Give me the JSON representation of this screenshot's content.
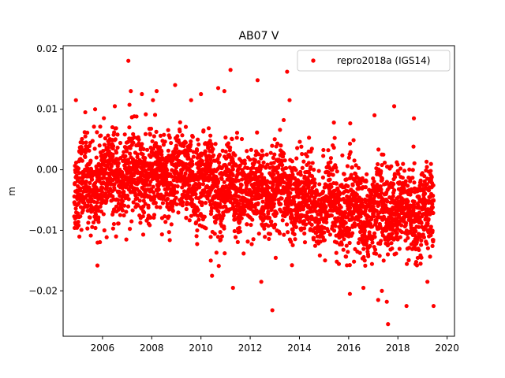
{
  "chart_data": {
    "type": "scatter",
    "title": "AB07 V",
    "xlabel": "",
    "ylabel": "m",
    "xlim": [
      2004.4,
      2020.3
    ],
    "ylim": [
      -0.0275,
      0.0205
    ],
    "xticks": [
      2006,
      2008,
      2010,
      2012,
      2014,
      2016,
      2018,
      2020
    ],
    "xtick_labels": [
      "2006",
      "2008",
      "2010",
      "2012",
      "2014",
      "2016",
      "2018",
      "2020"
    ],
    "yticks": [
      0.02,
      0.01,
      0.0,
      -0.01,
      -0.02
    ],
    "ytick_labels": [
      "0.02",
      "0.01",
      "0.00",
      "−0.01",
      "−0.02"
    ],
    "grid": false,
    "legend_position": "top-right",
    "series": [
      {
        "name": "repro2018a (IGS14)",
        "color": "#ff0000",
        "marker": "circle",
        "x_range": [
          2004.85,
          2019.45
        ],
        "trend_points": [
          [
            2004.85,
            -0.003
          ],
          [
            2007.0,
            -0.001
          ],
          [
            2009.0,
            -0.001
          ],
          [
            2010.5,
            -0.0025
          ],
          [
            2012.0,
            -0.004
          ],
          [
            2013.5,
            -0.004
          ],
          [
            2015.0,
            -0.0055
          ],
          [
            2016.5,
            -0.007
          ],
          [
            2018.0,
            -0.0065
          ],
          [
            2019.45,
            -0.007
          ]
        ],
        "noise_std": 0.0036,
        "outliers": [
          [
            2004.92,
            0.0115
          ],
          [
            2005.3,
            0.0095
          ],
          [
            2005.7,
            0.01
          ],
          [
            2006.5,
            0.0105
          ],
          [
            2007.05,
            0.018
          ],
          [
            2007.15,
            0.013
          ],
          [
            2007.6,
            0.0125
          ],
          [
            2008.05,
            0.0115
          ],
          [
            2008.2,
            0.013
          ],
          [
            2008.95,
            0.014
          ],
          [
            2009.6,
            0.0115
          ],
          [
            2010.0,
            0.0125
          ],
          [
            2010.7,
            0.0135
          ],
          [
            2010.95,
            0.013
          ],
          [
            2011.2,
            0.0165
          ],
          [
            2012.3,
            0.0148
          ],
          [
            2013.5,
            0.0162
          ],
          [
            2013.6,
            0.0115
          ],
          [
            2011.3,
            -0.0195
          ],
          [
            2012.9,
            -0.0232
          ],
          [
            2012.45,
            -0.0185
          ],
          [
            2010.45,
            -0.0175
          ],
          [
            2010.4,
            -0.015
          ],
          [
            2016.05,
            -0.0205
          ],
          [
            2016.6,
            -0.0195
          ],
          [
            2017.2,
            -0.0215
          ],
          [
            2017.35,
            -0.02
          ],
          [
            2017.6,
            -0.0255
          ],
          [
            2017.55,
            -0.0218
          ],
          [
            2018.35,
            -0.0225
          ],
          [
            2019.45,
            -0.0225
          ],
          [
            2019.2,
            -0.0185
          ],
          [
            2017.85,
            0.0105
          ],
          [
            2018.65,
            0.0085
          ],
          [
            2017.05,
            0.009
          ],
          [
            2015.4,
            0.0078
          ]
        ]
      }
    ]
  }
}
